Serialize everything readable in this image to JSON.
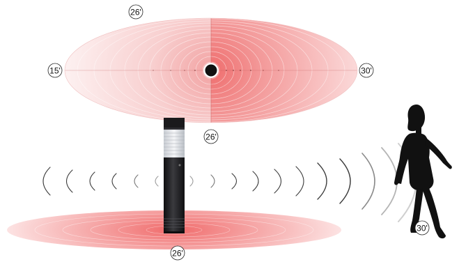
{
  "labels": {
    "top_width": "26'",
    "left_range": "15'",
    "right_range": "30'",
    "top_depth": "26'",
    "floor_width": "26'",
    "person_range": "30'"
  },
  "colors": {
    "zone_red": "#f07a7a",
    "zone_light": "#fbe3e3",
    "sensor_body": "#1d1d1f",
    "sensor_lens": "#d8dbe0",
    "wave_stroke": "#3a3a3a",
    "person": "#111111"
  },
  "icons": {
    "sensor": "motion-sensor-bollard-icon",
    "person": "walking-person-icon",
    "detector": "sensor-center-dot-icon"
  }
}
